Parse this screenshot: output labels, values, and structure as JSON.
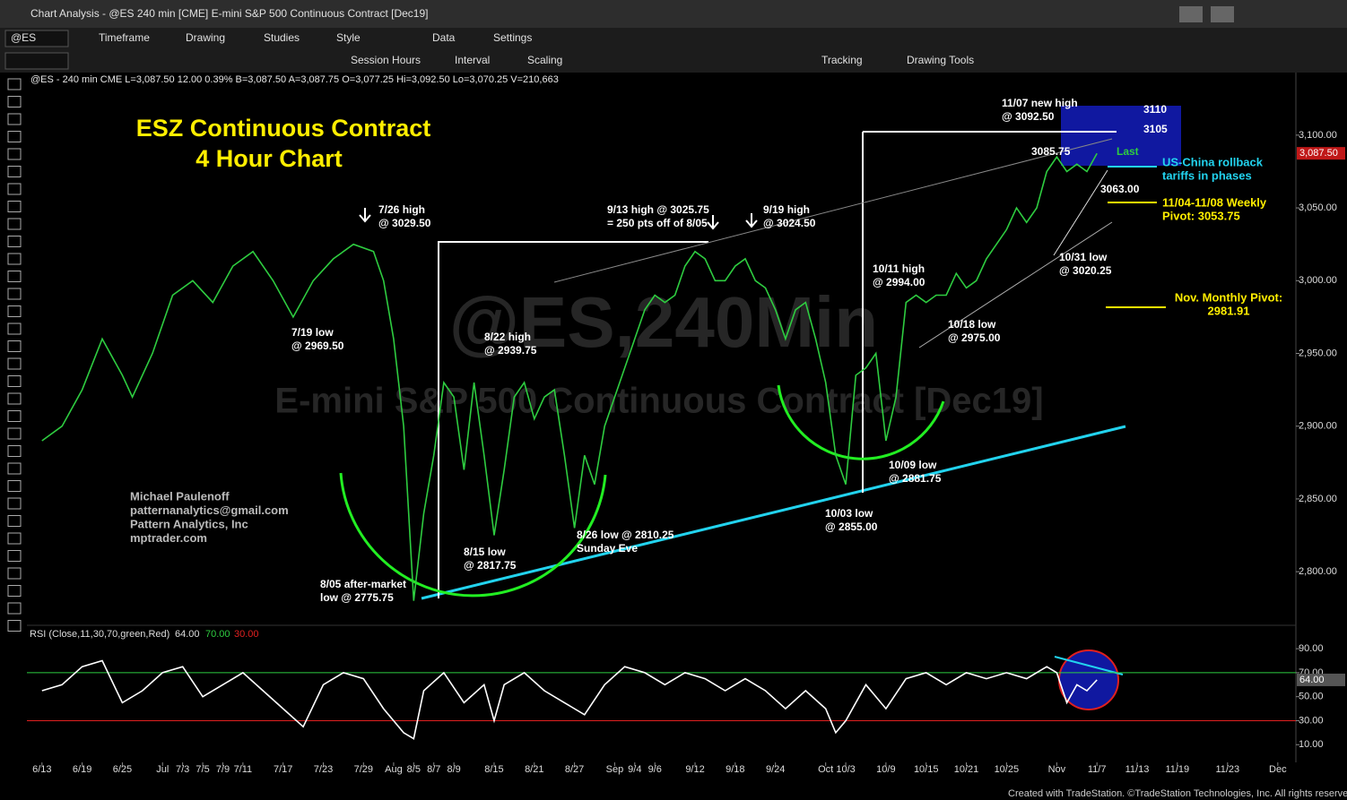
{
  "window": {
    "title": "Chart Analysis - @ES 240 min [CME] E-mini S&P 500 Continuous Contract [Dec19]"
  },
  "toolbar": {
    "symbol": "@ES",
    "row1": [
      "Timeframe",
      "Drawing",
      "Studies",
      "Style",
      "Data",
      "Settings"
    ],
    "row2": [
      "Session Hours",
      "Interval",
      "Scaling",
      "Tracking",
      "Drawing Tools"
    ]
  },
  "info_line": "@ES - 240 min  CME  L=3,087.50  12.00  0.39%  B=3,087.50  A=3,087.75  O=3,077.25  Hi=3,092.50  Lo=3,070.25  V=210,663",
  "watermark": [
    "@ES,240Min",
    "E-mini S&P 500 Continuous Contract [Dec19]"
  ],
  "author": [
    "Michael Paulenoff",
    "patternanalytics@gmail.com",
    "Pattern Analytics, Inc",
    "mptrader.com"
  ],
  "chart_data": [
    {
      "type": "line",
      "title": "ESZ Continuous Contract",
      "subtitle": "4 Hour Chart",
      "color": "#2ecc40",
      "x": [
        0,
        2,
        4,
        6,
        8,
        9,
        11,
        13,
        15,
        17,
        19,
        21,
        23,
        25,
        27,
        29,
        31,
        33,
        34,
        35,
        36,
        37,
        38,
        39,
        40,
        41,
        42,
        43,
        44,
        45,
        46,
        47,
        48,
        49,
        50,
        51,
        52,
        53,
        54,
        55,
        56,
        57,
        58,
        59,
        60,
        61,
        62,
        63,
        64,
        65,
        66,
        67,
        68,
        69,
        70,
        71,
        72,
        73,
        74,
        75,
        76,
        77,
        78,
        79,
        80,
        81,
        82,
        83,
        84,
        85,
        86,
        87,
        88,
        89,
        90,
        91,
        92,
        93,
        94,
        95,
        96,
        97,
        98,
        99,
        100,
        101,
        102,
        103,
        104,
        105
      ],
      "values": [
        2890,
        2900,
        2925,
        2960,
        2935,
        2920,
        2950,
        2990,
        3000,
        2985,
        3010,
        3020,
        3000,
        2975,
        3000,
        3015,
        3025,
        3020,
        3000,
        2960,
        2900,
        2780,
        2840,
        2880,
        2930,
        2920,
        2870,
        2930,
        2880,
        2825,
        2870,
        2920,
        2930,
        2905,
        2920,
        2925,
        2880,
        2830,
        2880,
        2860,
        2900,
        2920,
        2940,
        2960,
        2980,
        2990,
        2985,
        2990,
        3010,
        3020,
        3015,
        3000,
        3000,
        3010,
        3015,
        3000,
        2995,
        2980,
        2960,
        2980,
        2985,
        2960,
        2930,
        2880,
        2860,
        2935,
        2940,
        2950,
        2890,
        2920,
        2985,
        2990,
        2985,
        2990,
        2990,
        3005,
        2995,
        3000,
        3015,
        3025,
        3035,
        3050,
        3040,
        3050,
        3075,
        3085,
        3075,
        3080,
        3075,
        3087.5
      ],
      "last_label": "3,087.50",
      "xlim": [
        -1.5,
        124.8
      ],
      "ylim": [
        2765,
        3143
      ],
      "yticks": [
        {
          "value": 2800,
          "label": "2,800.00"
        },
        {
          "value": 2850,
          "label": "2,850.00"
        },
        {
          "value": 2900,
          "label": "2,900.00"
        },
        {
          "value": 2950,
          "label": "2,950.00"
        },
        {
          "value": 3000,
          "label": "3,000.00"
        },
        {
          "value": 3050,
          "label": "3,050.00"
        },
        {
          "value": 3100,
          "label": "3,100.00"
        }
      ],
      "xticks": [
        {
          "value": 0,
          "label": "6/13"
        },
        {
          "value": 4,
          "label": "6/19"
        },
        {
          "value": 8,
          "label": "6/25"
        },
        {
          "value": 12,
          "label": "Jul"
        },
        {
          "value": 14,
          "label": "7/3"
        },
        {
          "value": 16,
          "label": "7/5"
        },
        {
          "value": 18,
          "label": "7/9"
        },
        {
          "value": 20,
          "label": "7/11"
        },
        {
          "value": 24,
          "label": "7/17"
        },
        {
          "value": 28,
          "label": "7/23"
        },
        {
          "value": 32,
          "label": "7/29"
        },
        {
          "value": 35,
          "label": "Aug"
        },
        {
          "value": 37,
          "label": "8/5"
        },
        {
          "value": 39,
          "label": "8/7"
        },
        {
          "value": 41,
          "label": "8/9"
        },
        {
          "value": 45,
          "label": "8/15"
        },
        {
          "value": 49,
          "label": "8/21"
        },
        {
          "value": 53,
          "label": "8/27"
        },
        {
          "value": 57,
          "label": "Sep"
        },
        {
          "value": 59,
          "label": "9/4"
        },
        {
          "value": 61,
          "label": "9/6"
        },
        {
          "value": 65,
          "label": "9/12"
        },
        {
          "value": 69,
          "label": "9/18"
        },
        {
          "value": 73,
          "label": "9/24"
        },
        {
          "value": 78,
          "label": "Oct"
        },
        {
          "value": 80,
          "label": "10/3"
        },
        {
          "value": 84,
          "label": "10/9"
        },
        {
          "value": 88,
          "label": "10/15"
        },
        {
          "value": 92,
          "label": "10/21"
        },
        {
          "value": 96,
          "label": "10/25"
        },
        {
          "value": 101,
          "label": "Nov"
        },
        {
          "value": 105,
          "label": "11/7"
        },
        {
          "value": 109,
          "label": "11/13"
        },
        {
          "value": 113,
          "label": "11/19"
        },
        {
          "value": 118,
          "label": "11/23"
        },
        {
          "value": 123,
          "label": "Dec"
        }
      ],
      "annotations": [
        {
          "lines": [
            "7/26 high",
            "@ 3029.50"
          ],
          "color": "#ffffff"
        },
        {
          "lines": [
            "7/19 low",
            "@ 2969.50"
          ],
          "color": "#ffffff"
        },
        {
          "lines": [
            "8/22 high",
            "@ 2939.75"
          ],
          "color": "#ffffff"
        },
        {
          "lines": [
            "8/15 low",
            "@ 2817.75"
          ],
          "color": "#ffffff"
        },
        {
          "lines": [
            "8/05 after-market",
            "low @ 2775.75"
          ],
          "color": "#ffffff"
        },
        {
          "lines": [
            "8/26 low @ 2810.25",
            "Sunday Eve"
          ],
          "color": "#ffffff"
        },
        {
          "lines": [
            "9/13 high @ 3025.75",
            "= 250 pts off of 8/05"
          ],
          "color": "#ffffff"
        },
        {
          "lines": [
            "9/19 high",
            "@ 3024.50"
          ],
          "color": "#ffffff"
        },
        {
          "lines": [
            "10/11 high",
            "@ 2994.00"
          ],
          "color": "#ffffff"
        },
        {
          "lines": [
            "10/18 low",
            "@ 2975.00"
          ],
          "color": "#ffffff"
        },
        {
          "lines": [
            "10/03 low",
            "@ 2855.00"
          ],
          "color": "#ffffff"
        },
        {
          "lines": [
            "10/09 low",
            "@ 2881.75"
          ],
          "color": "#ffffff"
        },
        {
          "lines": [
            "11/07 new high",
            "@ 3092.50"
          ],
          "color": "#ffffff"
        },
        {
          "lines": [
            "3110"
          ],
          "color": "#ffffff"
        },
        {
          "lines": [
            "3105"
          ],
          "color": "#ffffff"
        },
        {
          "lines": [
            "3085.75"
          ],
          "color": "#ffffff"
        },
        {
          "lines": [
            "Last"
          ],
          "color": "#2ecc40"
        },
        {
          "lines": [
            "3063.00"
          ],
          "color": "#ffffff"
        },
        {
          "lines": [
            "10/31 low",
            "@ 3020.25"
          ],
          "color": "#ffffff"
        },
        {
          "lines": [
            "US-China rollback",
            "tariffs in phases"
          ],
          "color": "#22d3ee"
        },
        {
          "lines": [
            "11/04-11/08 Weekly",
            "Pivot: 3053.75"
          ],
          "color": "#ffee00"
        },
        {
          "lines": [
            "Nov. Monthly Pivot:",
            "2981.91"
          ],
          "color": "#ffee00"
        }
      ]
    },
    {
      "type": "line",
      "title": "RSI (Close,11,30,70,green,Red)",
      "color": "#ffffff",
      "x": [
        0,
        2,
        4,
        6,
        8,
        10,
        12,
        14,
        16,
        18,
        20,
        22,
        24,
        26,
        28,
        30,
        32,
        34,
        36,
        37,
        38,
        40,
        42,
        44,
        45,
        46,
        48,
        50,
        52,
        54,
        56,
        58,
        60,
        62,
        64,
        66,
        68,
        70,
        72,
        74,
        76,
        78,
        79,
        80,
        82,
        84,
        86,
        88,
        90,
        92,
        94,
        96,
        98,
        100,
        101,
        102,
        103,
        104,
        105
      ],
      "values": [
        55,
        60,
        75,
        80,
        45,
        55,
        70,
        75,
        50,
        60,
        70,
        55,
        40,
        25,
        60,
        70,
        65,
        40,
        20,
        15,
        55,
        70,
        45,
        60,
        30,
        60,
        70,
        55,
        45,
        35,
        60,
        75,
        70,
        60,
        70,
        65,
        55,
        65,
        55,
        40,
        55,
        40,
        20,
        30,
        60,
        40,
        65,
        70,
        60,
        70,
        65,
        70,
        65,
        75,
        70,
        45,
        60,
        55,
        64
      ],
      "last_label": "64.00",
      "levels": [
        {
          "value": 70,
          "label": "70.00",
          "color": "#2ecc40"
        },
        {
          "value": 30,
          "label": "30.00",
          "color": "#e02020"
        }
      ],
      "xlim": [
        -1.5,
        124.8
      ],
      "ylim": [
        -4,
        108
      ],
      "yticks": [
        {
          "value": 10,
          "label": "10.00"
        },
        {
          "value": 30,
          "label": "30.00"
        },
        {
          "value": 50,
          "label": "50.00"
        },
        {
          "value": 70,
          "label": "70.00"
        },
        {
          "value": 90,
          "label": "90.00"
        }
      ]
    }
  ],
  "footer": "Created with TradeStation. ©TradeStation Technologies, Inc. All rights reserved."
}
